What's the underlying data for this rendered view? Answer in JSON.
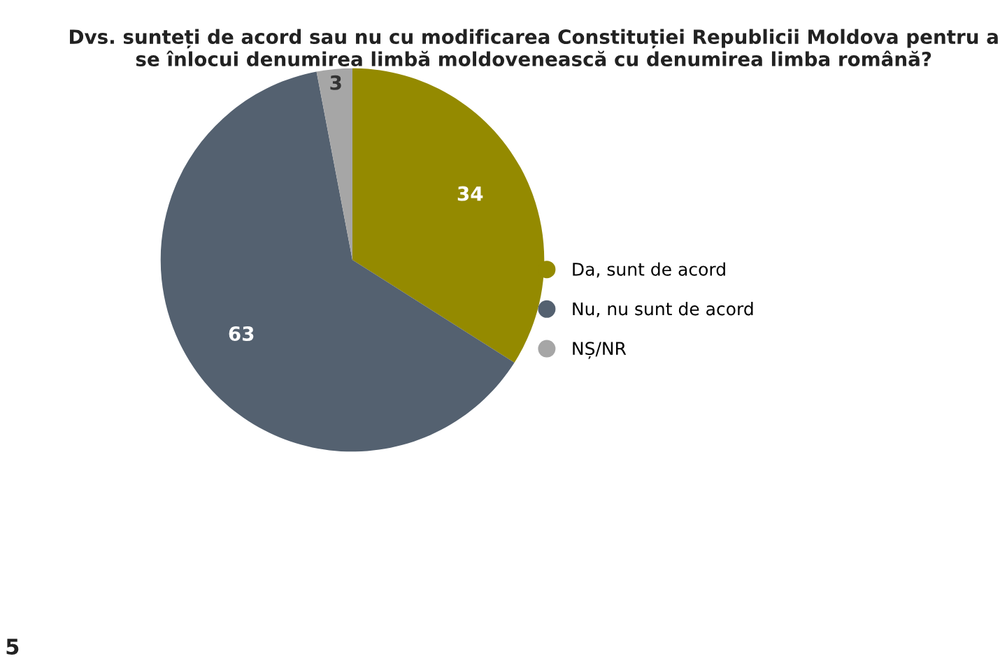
{
  "chart_data": {
    "type": "pie",
    "title": "Dvs. sunteți de acord sau nu cu modificarea Constituției Republicii Moldova pentru a se înlocui denumirea limbă moldovenească cu denumirea limba română?",
    "categories": [
      "Da, sunt de acord",
      "Nu, nu sunt de acord",
      "NȘ/NR"
    ],
    "values": [
      34,
      63,
      3
    ],
    "colors": [
      "#948a00",
      "#546170",
      "#a6a6a6"
    ],
    "data_labels": true,
    "legend": "right",
    "annotations": [
      "5"
    ]
  }
}
